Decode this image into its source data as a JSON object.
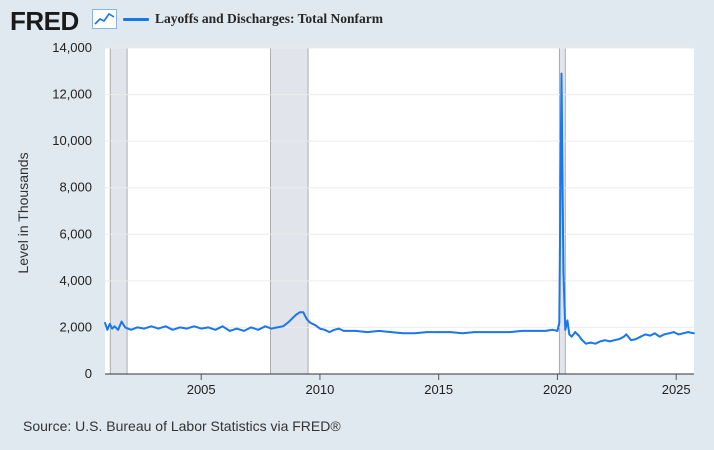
{
  "header": {
    "logo_text": "FRED",
    "logo_icon": "line-chart-icon",
    "legend_label": "Layoffs and Discharges: Total Nonfarm"
  },
  "footer": {
    "source": "Source: U.S. Bureau of Labor Statistics via FRED®"
  },
  "colors": {
    "series": "#1a76ec",
    "background": "#e1e9f0",
    "plot_background": "#ffffff",
    "recession_shading": "#e1e5eb",
    "gridline": "#ebebeb"
  },
  "chart_data": {
    "type": "line",
    "title": "",
    "xlabel": "",
    "ylabel": "Level in Thousands",
    "xlim": [
      2000.95,
      2025.75
    ],
    "ylim": [
      0,
      14000
    ],
    "yticks": [
      0,
      2000,
      4000,
      6000,
      8000,
      10000,
      12000,
      14000
    ],
    "ytick_labels": [
      "0",
      "2,000",
      "4,000",
      "6,000",
      "8,000",
      "10,000",
      "12,000",
      "14,000"
    ],
    "xticks": [
      2005,
      2010,
      2015,
      2020,
      2025
    ],
    "xtick_labels": [
      "2005",
      "2010",
      "2015",
      "2020",
      "2025"
    ],
    "grid": true,
    "legend": "top-left",
    "recessions": [
      [
        2001.17,
        2001.88
      ],
      [
        2007.92,
        2009.5
      ],
      [
        2020.08,
        2020.33
      ]
    ],
    "series": [
      {
        "name": "Layoffs and Discharges: Total Nonfarm",
        "x": [
          2000.95,
          2001.05,
          2001.15,
          2001.25,
          2001.35,
          2001.5,
          2001.65,
          2001.8,
          2001.92,
          2002.05,
          2002.3,
          2002.6,
          2002.9,
          2003.2,
          2003.5,
          2003.8,
          2004.1,
          2004.4,
          2004.7,
          2005.0,
          2005.3,
          2005.6,
          2005.9,
          2006.2,
          2006.5,
          2006.8,
          2007.1,
          2007.4,
          2007.7,
          2007.95,
          2008.2,
          2008.45,
          2008.7,
          2008.85,
          2009.0,
          2009.15,
          2009.3,
          2009.45,
          2009.6,
          2009.8,
          2010.0,
          2010.2,
          2010.4,
          2010.6,
          2010.8,
          2011.0,
          2011.5,
          2012.0,
          2012.5,
          2013.0,
          2013.5,
          2014.0,
          2014.5,
          2015.0,
          2015.5,
          2016.0,
          2016.5,
          2017.0,
          2017.5,
          2018.0,
          2018.5,
          2019.0,
          2019.5,
          2019.8,
          2020.0,
          2020.08,
          2020.17,
          2020.25,
          2020.33,
          2020.42,
          2020.5,
          2020.6,
          2020.75,
          2020.9,
          2021.0,
          2021.2,
          2021.4,
          2021.6,
          2021.8,
          2022.0,
          2022.2,
          2022.4,
          2022.6,
          2022.8,
          2022.9,
          2023.1,
          2023.3,
          2023.5,
          2023.7,
          2023.9,
          2024.1,
          2024.3,
          2024.5,
          2024.7,
          2024.9,
          2025.1,
          2025.3,
          2025.5,
          2025.75
        ],
        "values": [
          2200,
          1900,
          2150,
          1950,
          2050,
          1900,
          2250,
          2000,
          1950,
          1900,
          2000,
          1950,
          2050,
          1950,
          2050,
          1900,
          2000,
          1950,
          2050,
          1950,
          2000,
          1900,
          2050,
          1850,
          1950,
          1850,
          2000,
          1900,
          2050,
          1950,
          2000,
          2050,
          2250,
          2400,
          2550,
          2650,
          2650,
          2350,
          2200,
          2100,
          1950,
          1900,
          1800,
          1900,
          1950,
          1850,
          1850,
          1800,
          1850,
          1800,
          1750,
          1750,
          1800,
          1800,
          1800,
          1750,
          1800,
          1800,
          1800,
          1800,
          1850,
          1850,
          1850,
          1900,
          1850,
          2200,
          12900,
          4400,
          1900,
          2300,
          1700,
          1600,
          1800,
          1650,
          1500,
          1300,
          1350,
          1300,
          1400,
          1450,
          1400,
          1450,
          1500,
          1600,
          1700,
          1450,
          1500,
          1600,
          1700,
          1650,
          1750,
          1600,
          1700,
          1750,
          1800,
          1700,
          1750,
          1800,
          1750
        ]
      }
    ]
  }
}
